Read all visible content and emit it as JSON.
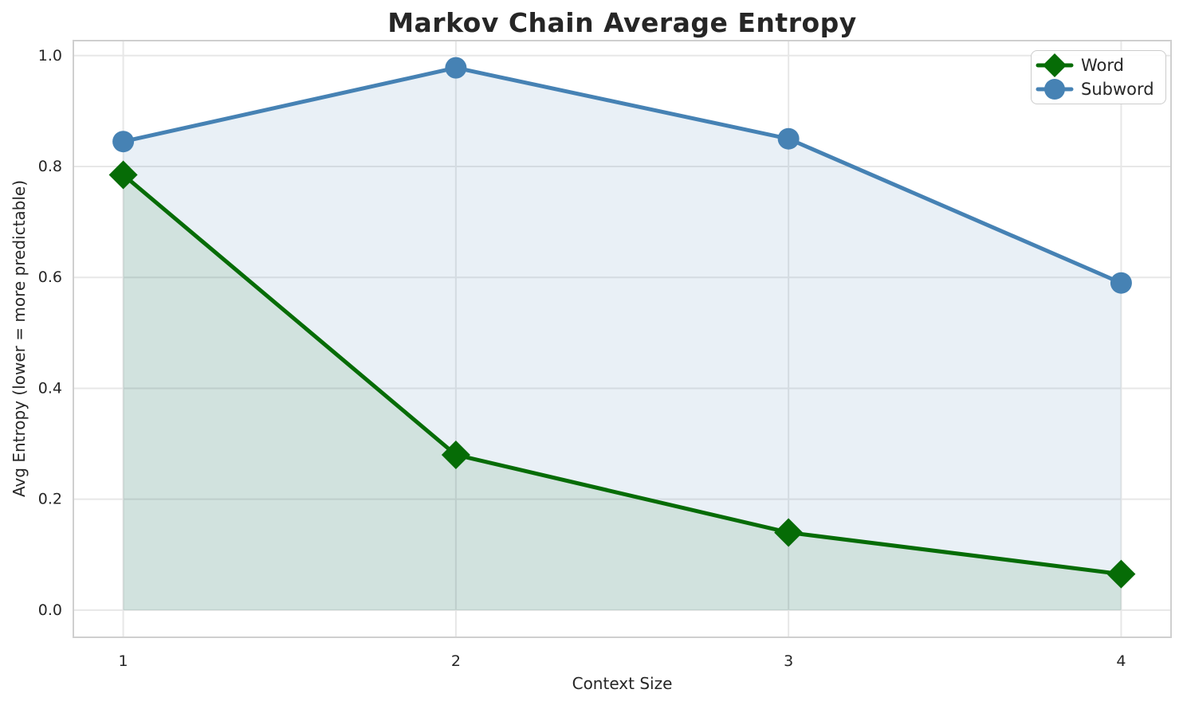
{
  "chart_data": {
    "type": "line",
    "title": "Markov Chain Average Entropy",
    "xlabel": "Context Size",
    "ylabel": "Avg Entropy (lower = more predictable)",
    "x": [
      1,
      2,
      3,
      4
    ],
    "series": [
      {
        "name": "Word",
        "marker": "diamond",
        "color": "#066c06",
        "fill_alpha": 0.11,
        "values": [
          0.785,
          0.28,
          0.14,
          0.065
        ]
      },
      {
        "name": "Subword",
        "marker": "circle",
        "color": "#4682b4",
        "fill_alpha": 0.12,
        "values": [
          0.845,
          0.978,
          0.85,
          0.59
        ]
      }
    ],
    "xticks": [
      1,
      2,
      3,
      4
    ],
    "ytick_labels": [
      "0.0",
      "0.2",
      "0.4",
      "0.6",
      "0.8",
      "1.0"
    ],
    "yticks": [
      0.0,
      0.2,
      0.4,
      0.6,
      0.8,
      1.0
    ],
    "xlim": [
      0.85,
      4.15
    ],
    "ylim": [
      -0.049,
      1.027
    ],
    "area_fill_to": 0,
    "grid": true,
    "legend_position": "upper-right",
    "colors": {
      "grid": "#e7e7e7",
      "spine": "#cfcfcf",
      "text": "#262626",
      "background": "#ffffff"
    }
  }
}
